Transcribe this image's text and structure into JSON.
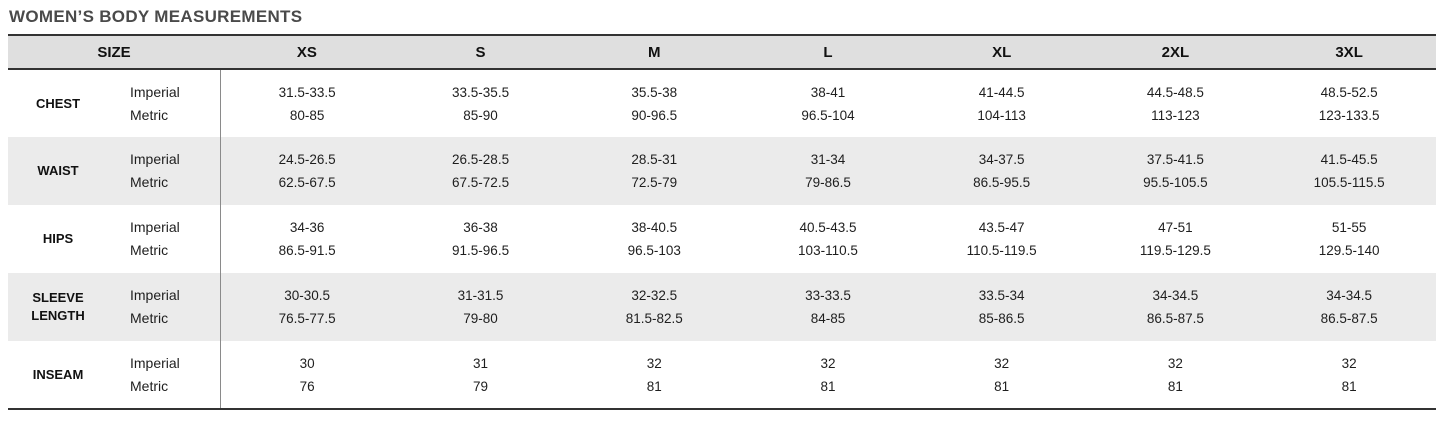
{
  "title": "WOMEN’S BODY MEASUREMENTS",
  "chart_data": {
    "type": "table",
    "title": "WOMEN’S BODY MEASUREMENTS",
    "size_header": "SIZE",
    "size_columns": [
      "XS",
      "S",
      "M",
      "L",
      "XL",
      "2XL",
      "3XL"
    ],
    "unit_labels": {
      "imperial": "Imperial",
      "metric": "Metric"
    },
    "rows": [
      {
        "label": "CHEST",
        "imperial": [
          "31.5-33.5",
          "33.5-35.5",
          "35.5-38",
          "38-41",
          "41-44.5",
          "44.5-48.5",
          "48.5-52.5"
        ],
        "metric": [
          "80-85",
          "85-90",
          "90-96.5",
          "96.5-104",
          "104-113",
          "113-123",
          "123-133.5"
        ]
      },
      {
        "label": "WAIST",
        "imperial": [
          "24.5-26.5",
          "26.5-28.5",
          "28.5-31",
          "31-34",
          "34-37.5",
          "37.5-41.5",
          "41.5-45.5"
        ],
        "metric": [
          "62.5-67.5",
          "67.5-72.5",
          "72.5-79",
          "79-86.5",
          "86.5-95.5",
          "95.5-105.5",
          "105.5-115.5"
        ]
      },
      {
        "label": "HIPS",
        "imperial": [
          "34-36",
          "36-38",
          "38-40.5",
          "40.5-43.5",
          "43.5-47",
          "47-51",
          "51-55"
        ],
        "metric": [
          "86.5-91.5",
          "91.5-96.5",
          "96.5-103",
          "103-110.5",
          "110.5-119.5",
          "119.5-129.5",
          "129.5-140"
        ]
      },
      {
        "label": "SLEEVE LENGTH",
        "imperial": [
          "30-30.5",
          "31-31.5",
          "32-32.5",
          "33-33.5",
          "33.5-34",
          "34-34.5",
          "34-34.5"
        ],
        "metric": [
          "76.5-77.5",
          "79-80",
          "81.5-82.5",
          "84-85",
          "85-86.5",
          "86.5-87.5",
          "86.5-87.5"
        ]
      },
      {
        "label": "INSEAM",
        "imperial": [
          "30",
          "31",
          "32",
          "32",
          "32",
          "32",
          "32"
        ],
        "metric": [
          "76",
          "79",
          "81",
          "81",
          "81",
          "81",
          "81"
        ]
      }
    ]
  },
  "colors": {
    "title_color": "#4a4a4a",
    "header_bg": "#dfdfdf",
    "row_alt_bg": "#ebebeb",
    "border_dark": "#333333",
    "divider": "#8a8a8a"
  }
}
